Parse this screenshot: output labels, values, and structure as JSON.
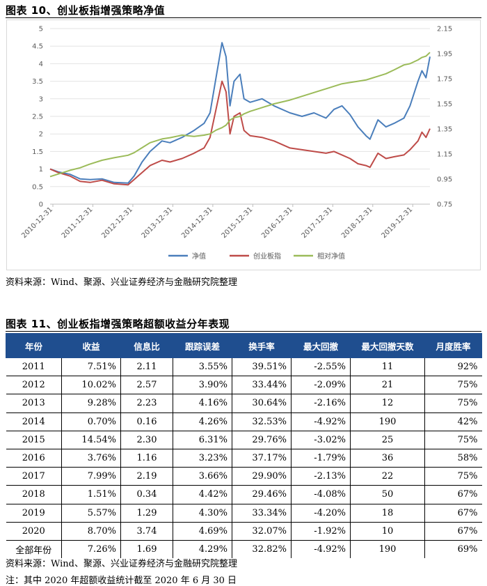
{
  "figure10": {
    "title": "图表 10、创业板指增强策略净值",
    "source": "资料来源：Wind、聚源、兴业证券经济与金融研究院整理"
  },
  "chart_data": {
    "type": "line",
    "title": "图表 10、创业板指增强策略净值",
    "x_ticks": [
      "2010-12-31",
      "2011-12-31",
      "2012-12-31",
      "2013-12-31",
      "2014-12-31",
      "2015-12-31",
      "2016-12-31",
      "2017-12-31",
      "2018-12-31",
      "2019-12-31"
    ],
    "x_range": [
      2011.0,
      2020.5
    ],
    "y_left": {
      "range": [
        0,
        5
      ],
      "ticks": [
        "0",
        "0.5",
        "1",
        "1.5",
        "2",
        "2.5",
        "3",
        "3.5",
        "4",
        "4.5",
        "5"
      ]
    },
    "y_right": {
      "range": [
        0.75,
        2.15
      ],
      "ticks": [
        "0.75",
        "0.95",
        "1.15",
        "1.35",
        "1.55",
        "1.75",
        "1.95",
        "2.15"
      ]
    },
    "legend_position": "bottom",
    "series": [
      {
        "name": "净值",
        "axis": "left",
        "color": "#4a7ebb",
        "points": [
          [
            2011.0,
            1.0
          ],
          [
            2011.2,
            0.92
          ],
          [
            2011.5,
            0.85
          ],
          [
            2011.75,
            0.72
          ],
          [
            2012.0,
            0.7
          ],
          [
            2012.3,
            0.72
          ],
          [
            2012.6,
            0.62
          ],
          [
            2012.95,
            0.6
          ],
          [
            2013.1,
            0.8
          ],
          [
            2013.3,
            1.2
          ],
          [
            2013.5,
            1.5
          ],
          [
            2013.8,
            1.8
          ],
          [
            2014.0,
            1.75
          ],
          [
            2014.3,
            1.9
          ],
          [
            2014.6,
            2.1
          ],
          [
            2014.85,
            2.3
          ],
          [
            2015.0,
            2.6
          ],
          [
            2015.15,
            3.6
          ],
          [
            2015.3,
            4.6
          ],
          [
            2015.4,
            4.2
          ],
          [
            2015.5,
            2.8
          ],
          [
            2015.6,
            3.5
          ],
          [
            2015.75,
            3.7
          ],
          [
            2015.85,
            3.0
          ],
          [
            2016.0,
            2.9
          ],
          [
            2016.3,
            3.0
          ],
          [
            2016.6,
            2.8
          ],
          [
            2017.0,
            2.6
          ],
          [
            2017.3,
            2.5
          ],
          [
            2017.6,
            2.6
          ],
          [
            2017.9,
            2.45
          ],
          [
            2018.1,
            2.7
          ],
          [
            2018.3,
            2.8
          ],
          [
            2018.5,
            2.55
          ],
          [
            2018.7,
            2.2
          ],
          [
            2018.9,
            1.95
          ],
          [
            2019.0,
            1.85
          ],
          [
            2019.2,
            2.4
          ],
          [
            2019.4,
            2.2
          ],
          [
            2019.6,
            2.3
          ],
          [
            2019.85,
            2.45
          ],
          [
            2020.0,
            2.8
          ],
          [
            2020.2,
            3.5
          ],
          [
            2020.3,
            3.8
          ],
          [
            2020.4,
            3.6
          ],
          [
            2020.5,
            4.2
          ]
        ]
      },
      {
        "name": "创业板指",
        "axis": "left",
        "color": "#be4b48",
        "points": [
          [
            2011.0,
            1.0
          ],
          [
            2011.2,
            0.9
          ],
          [
            2011.5,
            0.8
          ],
          [
            2011.75,
            0.65
          ],
          [
            2012.0,
            0.62
          ],
          [
            2012.3,
            0.68
          ],
          [
            2012.6,
            0.58
          ],
          [
            2012.95,
            0.55
          ],
          [
            2013.1,
            0.7
          ],
          [
            2013.3,
            0.9
          ],
          [
            2013.5,
            1.1
          ],
          [
            2013.8,
            1.25
          ],
          [
            2014.0,
            1.2
          ],
          [
            2014.3,
            1.3
          ],
          [
            2014.6,
            1.45
          ],
          [
            2014.85,
            1.6
          ],
          [
            2015.0,
            1.9
          ],
          [
            2015.15,
            2.7
          ],
          [
            2015.3,
            3.5
          ],
          [
            2015.4,
            3.2
          ],
          [
            2015.5,
            2.0
          ],
          [
            2015.6,
            2.5
          ],
          [
            2015.75,
            2.6
          ],
          [
            2015.85,
            2.1
          ],
          [
            2016.0,
            1.95
          ],
          [
            2016.3,
            1.9
          ],
          [
            2016.6,
            1.8
          ],
          [
            2017.0,
            1.6
          ],
          [
            2017.3,
            1.55
          ],
          [
            2017.6,
            1.5
          ],
          [
            2017.9,
            1.45
          ],
          [
            2018.1,
            1.5
          ],
          [
            2018.3,
            1.4
          ],
          [
            2018.5,
            1.3
          ],
          [
            2018.7,
            1.15
          ],
          [
            2018.9,
            1.1
          ],
          [
            2019.0,
            1.05
          ],
          [
            2019.2,
            1.45
          ],
          [
            2019.4,
            1.3
          ],
          [
            2019.6,
            1.35
          ],
          [
            2019.85,
            1.4
          ],
          [
            2020.0,
            1.55
          ],
          [
            2020.2,
            1.8
          ],
          [
            2020.3,
            2.05
          ],
          [
            2020.4,
            1.9
          ],
          [
            2020.5,
            2.15
          ]
        ]
      },
      {
        "name": "相对净值",
        "axis": "right",
        "color": "#9bbb59",
        "points": [
          [
            2011.0,
            0.97
          ],
          [
            2011.2,
            0.99
          ],
          [
            2011.5,
            1.02
          ],
          [
            2011.75,
            1.04
          ],
          [
            2012.0,
            1.07
          ],
          [
            2012.3,
            1.1
          ],
          [
            2012.6,
            1.12
          ],
          [
            2012.95,
            1.14
          ],
          [
            2013.1,
            1.16
          ],
          [
            2013.3,
            1.2
          ],
          [
            2013.5,
            1.24
          ],
          [
            2013.8,
            1.27
          ],
          [
            2014.0,
            1.28
          ],
          [
            2014.3,
            1.3
          ],
          [
            2014.6,
            1.29
          ],
          [
            2014.85,
            1.3
          ],
          [
            2015.0,
            1.31
          ],
          [
            2015.15,
            1.34
          ],
          [
            2015.3,
            1.36
          ],
          [
            2015.4,
            1.38
          ],
          [
            2015.5,
            1.42
          ],
          [
            2015.6,
            1.44
          ],
          [
            2015.75,
            1.45
          ],
          [
            2015.85,
            1.47
          ],
          [
            2016.0,
            1.49
          ],
          [
            2016.3,
            1.52
          ],
          [
            2016.6,
            1.55
          ],
          [
            2017.0,
            1.58
          ],
          [
            2017.3,
            1.61
          ],
          [
            2017.6,
            1.64
          ],
          [
            2017.9,
            1.67
          ],
          [
            2018.1,
            1.69
          ],
          [
            2018.3,
            1.71
          ],
          [
            2018.5,
            1.72
          ],
          [
            2018.7,
            1.73
          ],
          [
            2018.9,
            1.74
          ],
          [
            2019.0,
            1.75
          ],
          [
            2019.2,
            1.77
          ],
          [
            2019.4,
            1.79
          ],
          [
            2019.6,
            1.82
          ],
          [
            2019.85,
            1.86
          ],
          [
            2020.0,
            1.87
          ],
          [
            2020.2,
            1.9
          ],
          [
            2020.3,
            1.92
          ],
          [
            2020.4,
            1.93
          ],
          [
            2020.5,
            1.96
          ]
        ]
      }
    ]
  },
  "figure11": {
    "title": "图表 11、创业板指增强策略超额收益分年表现",
    "headers": [
      "年份",
      "收益",
      "信息比",
      "跟踪误差",
      "换手率",
      "最大回撤",
      "最大回撤天数",
      "月度胜率"
    ],
    "rows": [
      [
        "2011",
        "7.51%",
        "2.11",
        "3.55%",
        "39.51%",
        "-2.55%",
        "11",
        "92%"
      ],
      [
        "2012",
        "10.02%",
        "2.57",
        "3.90%",
        "33.44%",
        "-2.09%",
        "21",
        "75%"
      ],
      [
        "2013",
        "9.28%",
        "2.23",
        "4.16%",
        "30.64%",
        "-2.16%",
        "12",
        "75%"
      ],
      [
        "2014",
        "0.70%",
        "0.16",
        "4.26%",
        "32.53%",
        "-4.92%",
        "190",
        "42%"
      ],
      [
        "2015",
        "14.54%",
        "2.30",
        "6.31%",
        "29.76%",
        "-3.02%",
        "25",
        "75%"
      ],
      [
        "2016",
        "3.76%",
        "1.16",
        "3.23%",
        "37.17%",
        "-1.79%",
        "36",
        "58%"
      ],
      [
        "2017",
        "7.99%",
        "2.19",
        "3.66%",
        "29.90%",
        "-2.13%",
        "22",
        "75%"
      ],
      [
        "2018",
        "1.51%",
        "0.34",
        "4.42%",
        "29.46%",
        "-4.08%",
        "50",
        "67%"
      ],
      [
        "2019",
        "5.57%",
        "1.29",
        "4.30%",
        "33.34%",
        "-4.20%",
        "18",
        "67%"
      ],
      [
        "2020",
        "8.70%",
        "3.74",
        "4.69%",
        "32.07%",
        "-1.92%",
        "10",
        "67%"
      ],
      [
        "全部年份",
        "7.26%",
        "1.69",
        "4.29%",
        "32.82%",
        "-4.92%",
        "190",
        "69%"
      ]
    ],
    "source": "资料来源：Wind、聚源、兴业证券经济与金融研究院整理",
    "note": "注：其中 2020 年超额收益统计截至 2020 年 6 月 30 日"
  }
}
